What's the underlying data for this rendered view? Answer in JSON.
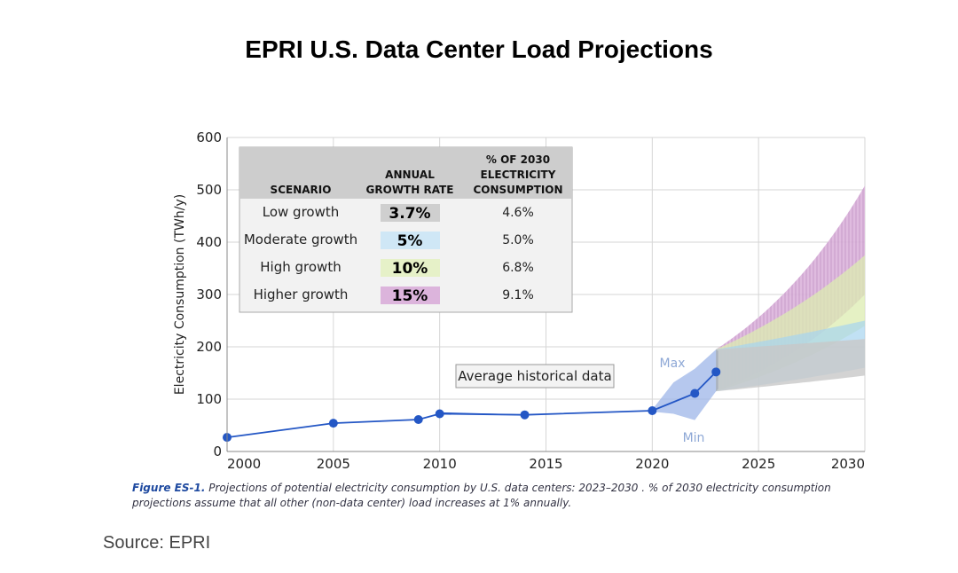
{
  "title": "EPRI U.S. Data Center Load Projections",
  "source": "Source: EPRI",
  "caption": {
    "figure_label": "Figure ES-1.",
    "text": "Projections of potential electricity consumption by U.S. data centers: 2023–2030 . % of 2030 electricity consumption projections assume that all other (non-data center) load increases at 1% annually."
  },
  "colors": {
    "historical": "#2457c5",
    "band": "#9db6e8",
    "low": "#c8c8c8",
    "moderate": "#a6d4f0",
    "high": "#dcecb0",
    "higher": "#d6a6d8"
  },
  "chart_data": {
    "type": "line",
    "title": "",
    "xlabel": "",
    "ylabel": "Electricity Consumption (TWh/y)",
    "xlim": [
      2000,
      2030
    ],
    "ylim": [
      0,
      600
    ],
    "xticks": [
      2000,
      2005,
      2010,
      2015,
      2020,
      2025,
      2030
    ],
    "yticks": [
      0,
      100,
      200,
      300,
      400,
      500,
      600
    ],
    "grid": true,
    "historical": {
      "name": "Average historical data",
      "x": [
        2000,
        2005,
        2009,
        2010,
        2014,
        2020,
        2022,
        2023
      ],
      "y": [
        27,
        54,
        61,
        72,
        70,
        78,
        111,
        152
      ]
    },
    "uncertainty_band": {
      "max_label": "Max",
      "min_label": "Min",
      "x": [
        2020,
        2021,
        2022,
        2023
      ],
      "upper": [
        80,
        132,
        158,
        195
      ],
      "lower": [
        76,
        72,
        60,
        115
      ]
    },
    "projections": [
      {
        "name": "Higher growth",
        "start": 2023,
        "end": 2030,
        "upper_start": 195,
        "lower_start": 115,
        "upper_end": 508,
        "lower_end": 300
      },
      {
        "name": "High growth",
        "start": 2023,
        "end": 2030,
        "upper_start": 195,
        "lower_start": 115,
        "upper_end": 375,
        "lower_end": 240
      },
      {
        "name": "Moderate growth",
        "start": 2023,
        "end": 2030,
        "upper_start": 195,
        "lower_start": 115,
        "upper_end": 250,
        "lower_end": 160
      },
      {
        "name": "Low growth",
        "start": 2023,
        "end": 2030,
        "upper_start": 195,
        "lower_start": 115,
        "upper_end": 215,
        "lower_end": 145
      }
    ],
    "inset_table": {
      "headers": [
        "SCENARIO",
        "ANNUAL GROWTH RATE",
        "% OF 2030 ELECTRICITY CONSUMPTION"
      ],
      "rows": [
        {
          "scenario": "Low growth",
          "rate": "3.7%",
          "share": "4.6%",
          "color": "#cfcfcf"
        },
        {
          "scenario": "Moderate growth",
          "rate": "5%",
          "share": "5.0%",
          "color": "#cfe7f6"
        },
        {
          "scenario": "High growth",
          "rate": "10%",
          "share": "6.8%",
          "color": "#e6f1c8"
        },
        {
          "scenario": "Higher growth",
          "rate": "15%",
          "share": "9.1%",
          "color": "#dcb4dc"
        }
      ]
    }
  }
}
